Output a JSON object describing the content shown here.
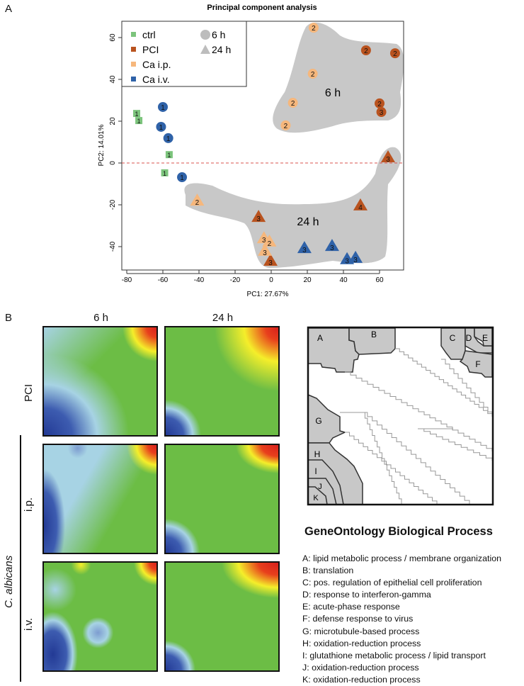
{
  "panel_a_letter": "A",
  "panel_b_letter": "B",
  "chart_data": {
    "type": "scatter",
    "title": "Principal component analysis",
    "xlabel": "PC1: 27.67%",
    "ylabel": "PC2: 14.01%",
    "xlim": [
      -80,
      72
    ],
    "ylim": [
      -50,
      67
    ],
    "xticks": [
      -80,
      -60,
      -40,
      -20,
      0,
      20,
      40,
      60
    ],
    "yticks": [
      -40,
      -20,
      0,
      20,
      40,
      60
    ],
    "reference_line": {
      "y": 0,
      "style": "dashed",
      "color": "#d9534f"
    },
    "legend": {
      "placement": "top-left",
      "groups": [
        {
          "name": "ctrl",
          "color": "#7cc47c"
        },
        {
          "name": "PCI",
          "color": "#b9531f"
        },
        {
          "name": "Ca i.p.",
          "color": "#f6b77c"
        },
        {
          "name": "Ca i.v.",
          "color": "#2f62a8"
        }
      ],
      "shapes": [
        {
          "name": "6 h",
          "shape": "circle"
        },
        {
          "name": "24 h",
          "shape": "triangle"
        }
      ]
    },
    "clusters": [
      {
        "label": "6 h",
        "color": "#c8c8c8"
      },
      {
        "label": "24 h",
        "color": "#c8c8c8"
      }
    ],
    "points": [
      {
        "group": "ctrl",
        "shape": "square",
        "x": -74.5,
        "y": 23.7,
        "label": "1"
      },
      {
        "group": "ctrl",
        "shape": "square",
        "x": -73.3,
        "y": 20.3,
        "label": "1"
      },
      {
        "group": "ctrl",
        "shape": "square",
        "x": -56.5,
        "y": 4,
        "label": "1"
      },
      {
        "group": "ctrl",
        "shape": "square",
        "x": -59,
        "y": -4.7,
        "label": "1"
      },
      {
        "group": "Ca i.v.",
        "shape": "circle",
        "x": -60,
        "y": 26.8,
        "label": "1"
      },
      {
        "group": "Ca i.v.",
        "shape": "circle",
        "x": -61,
        "y": 17.3,
        "label": "1"
      },
      {
        "group": "Ca i.v.",
        "shape": "circle",
        "x": -57,
        "y": 11.9,
        "label": "1"
      },
      {
        "group": "Ca i.v.",
        "shape": "circle",
        "x": -49.4,
        "y": -6.8,
        "label": "1"
      },
      {
        "group": "Ca i.p.",
        "shape": "circle",
        "x": 23.5,
        "y": 64.7,
        "label": "2"
      },
      {
        "group": "Ca i.p.",
        "shape": "circle",
        "x": 23,
        "y": 42.7,
        "label": "2"
      },
      {
        "group": "Ca i.p.",
        "shape": "circle",
        "x": 12,
        "y": 28.8,
        "label": "2"
      },
      {
        "group": "Ca i.p.",
        "shape": "circle",
        "x": 8,
        "y": 18,
        "label": "2"
      },
      {
        "group": "PCI",
        "shape": "circle",
        "x": 52.5,
        "y": 53.9,
        "label": "2"
      },
      {
        "group": "PCI",
        "shape": "circle",
        "x": 68.6,
        "y": 52.5,
        "label": "2"
      },
      {
        "group": "PCI",
        "shape": "circle",
        "x": 60,
        "y": 28.5,
        "label": "2"
      },
      {
        "group": "PCI",
        "shape": "circle",
        "x": 61,
        "y": 24.4,
        "label": "3"
      },
      {
        "group": "PCI",
        "shape": "triangle",
        "x": 64.7,
        "y": 2.7,
        "label": "3"
      },
      {
        "group": "PCI",
        "shape": "triangle",
        "x": 49.4,
        "y": -20.3,
        "label": "4"
      },
      {
        "group": "PCI",
        "shape": "triangle",
        "x": -7,
        "y": -25.8,
        "label": "3"
      },
      {
        "group": "PCI",
        "shape": "triangle",
        "x": -0.4,
        "y": -46.8,
        "label": "3"
      },
      {
        "group": "Ca i.p.",
        "shape": "triangle",
        "x": -41,
        "y": -18,
        "label": "2"
      },
      {
        "group": "Ca i.p.",
        "shape": "triangle",
        "x": -4,
        "y": -36,
        "label": "3"
      },
      {
        "group": "Ca i.p.",
        "shape": "triangle",
        "x": -1,
        "y": -37.6,
        "label": "2"
      },
      {
        "group": "Ca i.p.",
        "shape": "triangle",
        "x": -3.5,
        "y": -42,
        "label": "3"
      },
      {
        "group": "Ca i.v.",
        "shape": "triangle",
        "x": 18.4,
        "y": -40.7,
        "label": "3"
      },
      {
        "group": "Ca i.v.",
        "shape": "triangle",
        "x": 33.7,
        "y": -39.7,
        "label": "3"
      },
      {
        "group": "Ca i.v.",
        "shape": "triangle",
        "x": 42,
        "y": -46,
        "label": "3"
      },
      {
        "group": "Ca i.v.",
        "shape": "triangle",
        "x": 46.7,
        "y": -45.4,
        "label": "3"
      }
    ]
  },
  "heatmaps": {
    "col_labels": [
      "6 h",
      "24 h"
    ],
    "row_labels": [
      "PCI",
      "i.p.",
      "i.v."
    ],
    "group_label": "C. albicans",
    "colorscale": [
      "#2a3f9a",
      "#a9d6e5",
      "#6cbd45",
      "#f5ee2a",
      "#e0241c"
    ]
  },
  "go": {
    "title": "GeneOntology Biological Process",
    "region_labels": [
      "A",
      "B",
      "C",
      "D",
      "E",
      "F",
      "G",
      "H",
      "I",
      "J",
      "K"
    ],
    "items": [
      "A: lipid metabolic process / membrane organization",
      "B: translation",
      "C: pos. regulation of epithelial cell proliferation",
      "D: response to interferon-gamma",
      "E: acute-phase response",
      "F: defense response to virus",
      "G: microtubule-based process",
      "H: oxidation-reduction process",
      "I: glutathione metabolic process / lipid transport",
      "J: oxidation-reduction process",
      "K: oxidation-reduction process"
    ]
  }
}
